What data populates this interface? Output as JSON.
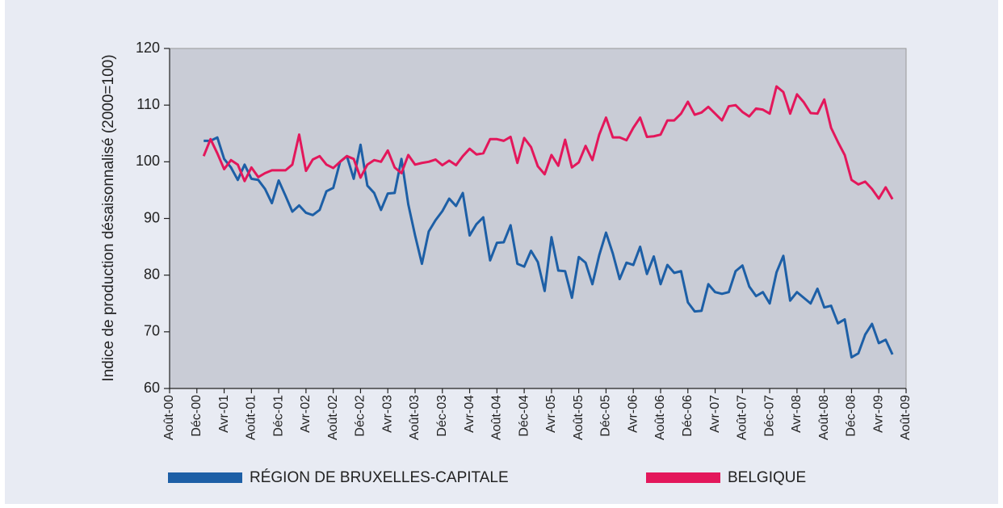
{
  "chart_data": {
    "type": "line",
    "y_label": "Indice de production désaisonnalisé (2000=100)",
    "categories": [
      "Août-00",
      null,
      null,
      null,
      "Déc-00",
      null,
      null,
      null,
      "Avr-01",
      null,
      null,
      null,
      "Août-01",
      null,
      null,
      null,
      "Déc-01",
      null,
      null,
      null,
      "Avr-02",
      null,
      null,
      null,
      "Août-02",
      null,
      null,
      null,
      "Déc-02",
      null,
      null,
      null,
      "Avr-03",
      null,
      null,
      null,
      "Août-03",
      null,
      null,
      null,
      "Déc-03",
      null,
      null,
      null,
      "Avr-04",
      null,
      null,
      null,
      "Août-04",
      null,
      null,
      null,
      "Déc-04",
      null,
      null,
      null,
      "Avr-05",
      null,
      null,
      null,
      "Août-05",
      null,
      null,
      null,
      "Déc-05",
      null,
      null,
      null,
      "Avr-06",
      null,
      null,
      null,
      "Août-06",
      null,
      null,
      null,
      "Déc-06",
      null,
      null,
      null,
      "Avr-07",
      null,
      null,
      null,
      "Août-07",
      null,
      null,
      null,
      "Déc-07",
      null,
      null,
      null,
      "Avr-08",
      null,
      null,
      null,
      "Août-08",
      null,
      null,
      null,
      "Déc-08",
      null,
      null,
      null,
      "Avr-09",
      null,
      null,
      null,
      "Août-09"
    ],
    "series": [
      {
        "name": "RÉGION DE BRUXELLES-CAPITALE",
        "color": "#1d5fa6",
        "values": [
          null,
          null,
          null,
          null,
          null,
          103.7,
          103.7,
          104.3,
          100.5,
          99,
          96.8,
          99.5,
          97,
          96.8,
          95.2,
          92.7,
          96.7,
          94,
          91.2,
          92.3,
          91,
          90.6,
          91.5,
          94.8,
          95.4,
          100,
          101,
          97,
          103,
          95.8,
          94.5,
          91.5,
          94.4,
          94.5,
          100.5,
          92.5,
          87,
          82,
          87.7,
          89.7,
          91.3,
          93.5,
          92.2,
          94.5,
          87,
          89,
          90.2,
          82.6,
          85.7,
          85.8,
          88.8,
          82,
          81.5,
          84.3,
          82.3,
          77.2,
          86.7,
          80.8,
          80.7,
          76,
          83.2,
          82.2,
          78.4,
          83.5,
          87.5,
          83.8,
          79.3,
          82.2,
          81.8,
          85,
          80.2,
          83.3,
          78.4,
          81.8,
          80.4,
          80.7,
          75.2,
          73.6,
          73.7,
          78.4,
          77,
          76.7,
          77,
          80.7,
          81.7,
          78,
          76.3,
          77,
          75,
          80.5,
          83.4,
          75.5,
          77,
          76,
          75,
          77.6,
          74.3,
          74.6,
          71.5,
          72.2,
          65.5,
          66.2,
          69.5,
          71.4,
          68,
          68.6,
          66,
          null,
          null
        ]
      },
      {
        "name": "BELGIQUE",
        "color": "#e3175b",
        "values": [
          null,
          null,
          null,
          null,
          null,
          101,
          104,
          101.5,
          98.7,
          100.3,
          99.5,
          96.6,
          99,
          97.3,
          98,
          98.5,
          98.5,
          98.5,
          99.5,
          104.8,
          98.4,
          100.4,
          101,
          99.5,
          98.9,
          100,
          101,
          100.5,
          97.2,
          99.5,
          100.3,
          100,
          102,
          99,
          98,
          101.2,
          99.5,
          99.8,
          100,
          100.4,
          99.4,
          100.2,
          99.4,
          101,
          102.3,
          101.3,
          101.5,
          104,
          104,
          103.7,
          104.4,
          99.8,
          104.2,
          102.6,
          99.2,
          97.8,
          101.2,
          99.3,
          103.9,
          99,
          99.9,
          102.8,
          100.3,
          104.8,
          107.8,
          104.3,
          104.3,
          103.8,
          106,
          107.8,
          104.4,
          104.5,
          104.8,
          107.3,
          107.3,
          108.5,
          110.6,
          108.3,
          108.7,
          109.7,
          108.5,
          107.3,
          109.8,
          110,
          108.8,
          108,
          109.4,
          109.2,
          108.5,
          113.3,
          112.3,
          108.5,
          111.9,
          110.5,
          108.6,
          108.5,
          111,
          106,
          103.5,
          101.2,
          96.8,
          96,
          96.5,
          95.2,
          93.5,
          95.5,
          93.4,
          null,
          null
        ]
      }
    ],
    "ylim": [
      60,
      120
    ],
    "yticks": [
      60,
      70,
      80,
      90,
      100,
      110,
      120
    ],
    "grid": false,
    "legend": "bottom"
  }
}
